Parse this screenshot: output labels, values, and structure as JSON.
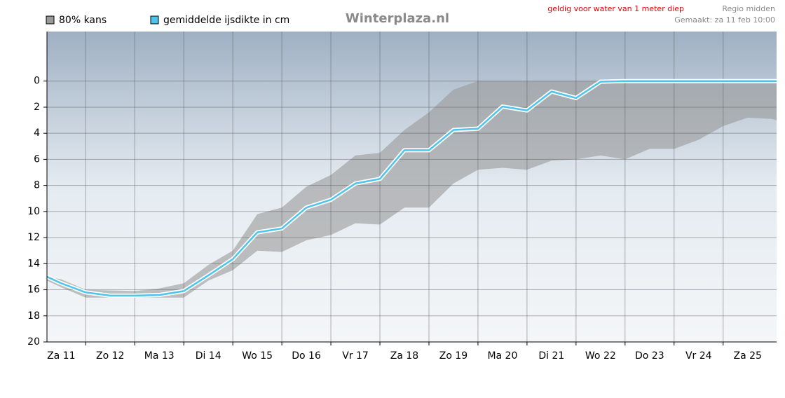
{
  "chart_data": {
    "type": "line",
    "title": "Winterplaza.nl",
    "note": "geldig voor water van 1 meter diep",
    "region": "Regio midden",
    "made": "Gemaakt: za 11 feb 10:00",
    "inverted": true,
    "grid": true,
    "ylim": [
      -3.8,
      20
    ],
    "yticks": [
      0,
      2,
      4,
      6,
      8,
      10,
      12,
      14,
      16,
      18,
      20
    ],
    "xlim": [
      0.21,
      15.09
    ],
    "xgrid": [
      1,
      2,
      3,
      4,
      5,
      6,
      7,
      8,
      9,
      10,
      11,
      12,
      13,
      14
    ],
    "xticks": [
      {
        "value": 0.5,
        "label": "Za 11"
      },
      {
        "value": 1.5,
        "label": "Zo 12"
      },
      {
        "value": 2.5,
        "label": "Ma 13"
      },
      {
        "value": 3.5,
        "label": "Di 14"
      },
      {
        "value": 4.5,
        "label": "Wo 15"
      },
      {
        "value": 5.5,
        "label": "Do 16"
      },
      {
        "value": 6.5,
        "label": "Vr 17"
      },
      {
        "value": 7.5,
        "label": "Za 18"
      },
      {
        "value": 8.5,
        "label": "Zo 19"
      },
      {
        "value": 9.5,
        "label": "Ma 20"
      },
      {
        "value": 10.5,
        "label": "Di 21"
      },
      {
        "value": 11.5,
        "label": "Wo 22"
      },
      {
        "value": 12.5,
        "label": "Do 23"
      },
      {
        "value": 13.5,
        "label": "Vr 24"
      },
      {
        "value": 14.5,
        "label": "Za 25"
      }
    ],
    "x": [
      0.21,
      0.5,
      1,
      1.5,
      2,
      2.5,
      3,
      3.5,
      4,
      4.5,
      5,
      5.5,
      6,
      6.5,
      7,
      7.5,
      8,
      8.5,
      9,
      9.5,
      10,
      10.5,
      11,
      11.5,
      12,
      12.5,
      13,
      13.5,
      14,
      14.5,
      15,
      15.09
    ],
    "band": {
      "name": "80% kans",
      "color": "#999999",
      "low": [
        15.0,
        15.2,
        16.0,
        16.05,
        16.1,
        15.9,
        15.5,
        14.1,
        13.0,
        10.2,
        9.7,
        8.1,
        7.2,
        5.7,
        5.5,
        3.75,
        2.4,
        0.65,
        0,
        0,
        0,
        0,
        0,
        0,
        0,
        0,
        0,
        0,
        0,
        0,
        0,
        0
      ],
      "high": [
        15.3,
        15.8,
        16.6,
        16.6,
        16.6,
        16.6,
        16.6,
        15.3,
        14.5,
        13.0,
        13.1,
        12.2,
        11.8,
        10.9,
        11.0,
        9.7,
        9.7,
        7.85,
        6.8,
        6.65,
        6.8,
        6.1,
        6.0,
        5.7,
        6.0,
        5.2,
        5.2,
        4.5,
        3.45,
        2.8,
        2.9,
        3.0
      ]
    },
    "series": [
      {
        "name": "gemiddelde ijsdikte in cm",
        "color": "#4cc4ec",
        "values": [
          15.0,
          15.5,
          16.2,
          16.45,
          16.45,
          16.4,
          16.1,
          14.9,
          13.65,
          11.6,
          11.3,
          9.7,
          9.1,
          7.85,
          7.5,
          5.3,
          5.3,
          3.75,
          3.65,
          1.95,
          2.25,
          0.8,
          1.3,
          0.05,
          0,
          0,
          0,
          0,
          0,
          0,
          0,
          0
        ]
      }
    ]
  }
}
